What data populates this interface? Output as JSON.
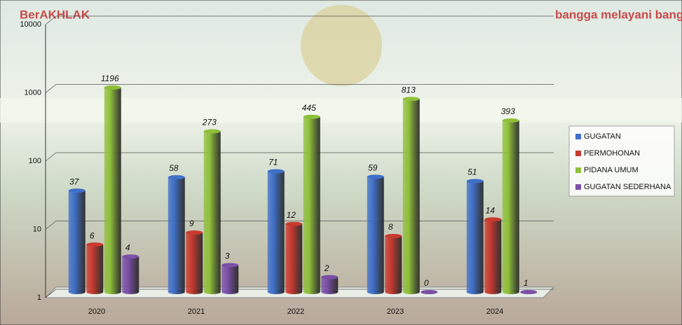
{
  "logos": {
    "left": "BerAKHLAK",
    "right": "bangga melayani bangsa"
  },
  "chart_data": {
    "type": "bar",
    "log_scale": true,
    "grid": true,
    "legend": "right",
    "categories": [
      "2020",
      "2021",
      "2022",
      "2023",
      "2024"
    ],
    "series": [
      {
        "name": "GUGATAN",
        "color": "#3f6fc8",
        "values": [
          37,
          58,
          71,
          59,
          51
        ]
      },
      {
        "name": "PERMOHONAN",
        "color": "#c8392f",
        "values": [
          6,
          9,
          12,
          8,
          14
        ]
      },
      {
        "name": "PIDANA UMUM",
        "color": "#8fbf3a",
        "values": [
          1196,
          273,
          445,
          813,
          393
        ]
      },
      {
        "name": "GUGATAN SEDERHANA",
        "color": "#7b4fa8",
        "values": [
          4,
          3,
          2,
          0,
          1
        ]
      }
    ],
    "ylim": [
      1,
      10000
    ],
    "yticks": [
      1,
      10,
      100,
      1000,
      10000
    ]
  }
}
